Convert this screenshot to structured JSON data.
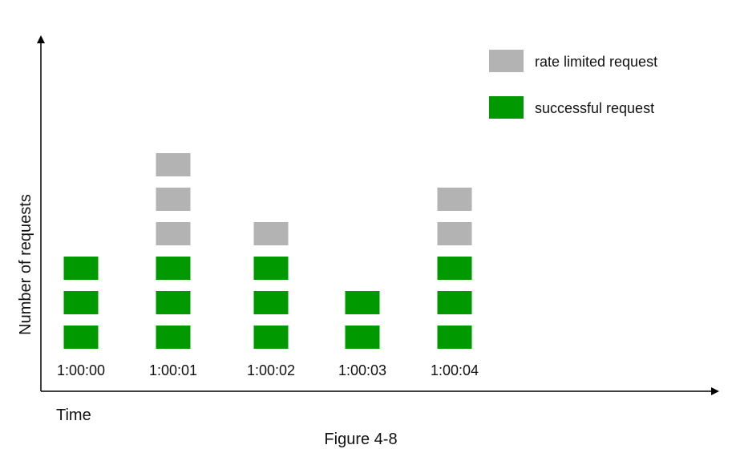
{
  "chart_data": {
    "type": "bar",
    "subtype": "stacked-blocks",
    "categories": [
      "1:00:00",
      "1:00:01",
      "1:00:02",
      "1:00:03",
      "1:00:04"
    ],
    "series": [
      {
        "name": "successful request",
        "color": "#009900",
        "values": [
          3,
          3,
          3,
          2,
          3
        ]
      },
      {
        "name": "rate limited request",
        "color": "#b3b3b3",
        "values": [
          0,
          3,
          1,
          0,
          2
        ]
      }
    ],
    "xlabel": "Time",
    "ylabel": "Number of requests",
    "caption": "Figure 4-8",
    "legend": "top-right",
    "grid": false
  }
}
